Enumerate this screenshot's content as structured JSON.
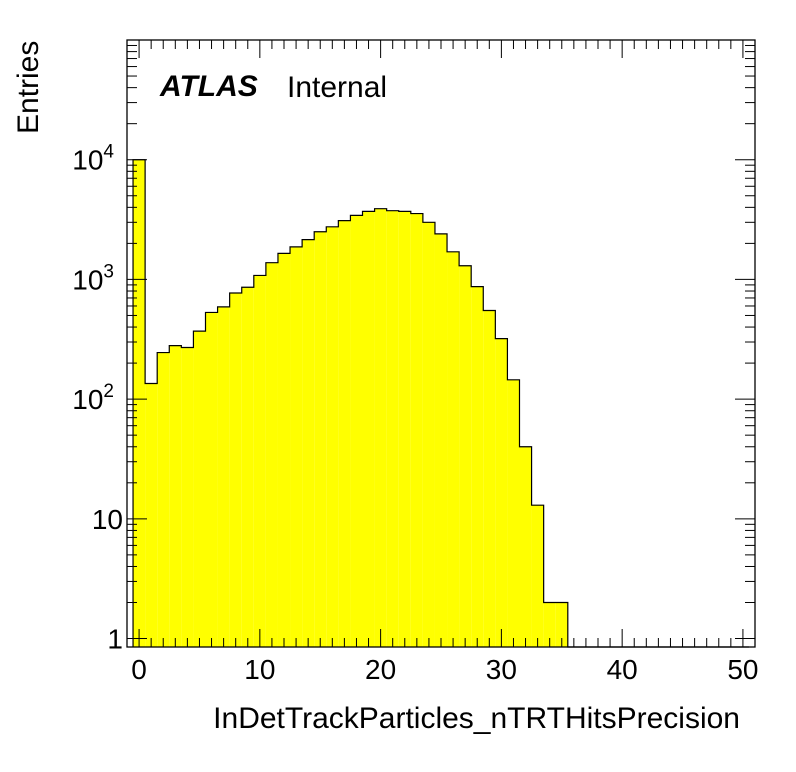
{
  "atlas_label": {
    "bold": "ATLAS",
    "rest": "Internal"
  },
  "chart_data": {
    "type": "bar",
    "histogram": true,
    "xlabel": "InDetTrackParticles_nTRTHitsPrecision",
    "ylabel": "Entries",
    "xlim": [
      -1,
      51
    ],
    "ylim": [
      0.85,
      100000
    ],
    "log_y": true,
    "grid": false,
    "fill_color": "#ffff00",
    "edge_color": "#000000",
    "xticks": [
      0,
      10,
      20,
      30,
      40,
      50
    ],
    "yticks": [
      {
        "value": 1,
        "base": "1",
        "sup": ""
      },
      {
        "value": 10,
        "base": "10",
        "sup": ""
      },
      {
        "value": 100,
        "base": "10",
        "sup": "2"
      },
      {
        "value": 1000,
        "base": "10",
        "sup": "3"
      },
      {
        "value": 10000,
        "base": "10",
        "sup": "4"
      }
    ],
    "bin_edges": [
      -0.5,
      0.5,
      1.5,
      2.5,
      3.5,
      4.5,
      5.5,
      6.5,
      7.5,
      8.5,
      9.5,
      10.5,
      11.5,
      12.5,
      13.5,
      14.5,
      15.5,
      16.5,
      17.5,
      18.5,
      19.5,
      20.5,
      21.5,
      22.5,
      23.5,
      24.5,
      25.5,
      26.5,
      27.5,
      28.5,
      29.5,
      30.5,
      31.5,
      32.5,
      33.5,
      34.5,
      35.5,
      36.5,
      37.5,
      38.5,
      39.5,
      40.5,
      41.5,
      42.5,
      43.5,
      44.5,
      45.5,
      46.5,
      47.5,
      48.5,
      49.5,
      50.5
    ],
    "values": [
      10000,
      135,
      245,
      280,
      270,
      370,
      530,
      590,
      770,
      860,
      1080,
      1380,
      1650,
      1870,
      2150,
      2500,
      2750,
      3100,
      3430,
      3700,
      3900,
      3750,
      3700,
      3550,
      3000,
      2400,
      1700,
      1300,
      870,
      550,
      320,
      145,
      40,
      13,
      2,
      2,
      0,
      0,
      0,
      0,
      0,
      0,
      0,
      0,
      0,
      0,
      0,
      0,
      0,
      0,
      0
    ]
  }
}
